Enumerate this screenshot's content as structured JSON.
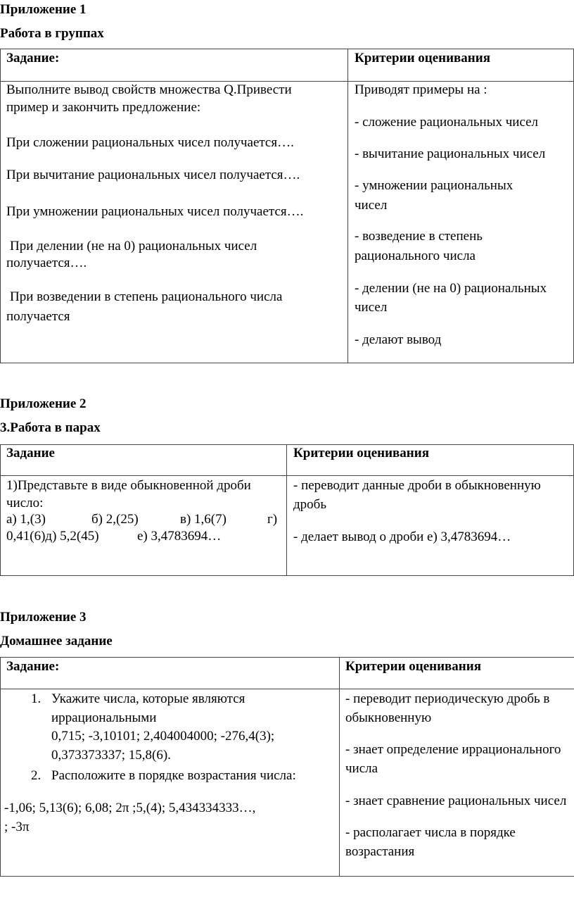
{
  "app1": {
    "title": "Приложение 1",
    "subtitle": "Работа в группах",
    "header": [
      "Задание:",
      "Критерии оценивания"
    ],
    "task_lines": [
      "Выполните вывод  свойств множества Q.Привести",
      "пример и закончить предложение:",
      "При сложении рациональных чисел получается….",
      "При вычитание рациональных чисел получается….",
      "При умножении рациональных чисел получается….",
      "При делении (не на 0) рациональных чисел",
      "получается….",
      "При возведении в степень рационального числа",
      "получается"
    ],
    "criteria_lines": [
      "Приводят примеры на :",
      "- сложение рациональных чисел",
      "- вычитание рациональных чисел",
      "- умножении рациональных",
      "чисел",
      "- возведение в степень",
      "рационального числа",
      "- делении (не на 0) рациональных",
      "чисел",
      "- делают вывод"
    ]
  },
  "app2": {
    "title": "Приложение 2",
    "subtitle": "3.Работа в парах",
    "header": [
      "Задание",
      "Критерии оценивания"
    ],
    "task_lines": [
      "1)Представьте в виде обыкновенной дроби",
      "число:",
      "а) 1,(3)",
      "б) 2,(25)",
      "в) 1,6(7)",
      "г)",
      "0,41(6)д) 5,2(45)",
      "е) 3,4783694…"
    ],
    "criteria_lines": [
      "- переводит данные дроби в обыкновенную",
      "дробь",
      "- делает вывод о дроби е) 3,4783694…"
    ]
  },
  "app3": {
    "title": "Приложение 3",
    "subtitle": "Домашнее задание",
    "header": [
      "Задание:",
      "Критерии оценивания"
    ],
    "task_lines": [
      "1.",
      "Укажите числа, которые являются",
      "иррациональными",
      "0,715;    -3,10101;  2,404004000;   -276,4(3);",
      "0,373373337;      15,8(6).",
      "2.",
      "Расположите в порядке возрастания числа:",
      "-1,06;     5,13(6);   6,08;   2π  ;5,(4); 5,434334333…,",
      "; -3π"
    ],
    "criteria_lines": [
      "- переводит периодическую дробь в",
      "обыкновенную",
      "- знает определение иррационального",
      "числа",
      "-  знает сравнение рациональных чисел",
      "- располагает числа в порядке",
      "возрастания"
    ]
  }
}
